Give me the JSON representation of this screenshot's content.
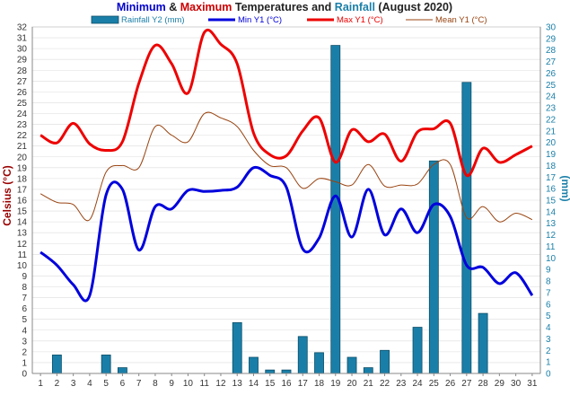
{
  "chart_data": {
    "type": "bar+line",
    "title_parts": [
      {
        "text": "Minimum",
        "color": "#0000cc"
      },
      {
        "text": " & ",
        "color": "#222222"
      },
      {
        "text": "Maximum",
        "color": "#cc0000"
      },
      {
        "text": " Temperatures and ",
        "color": "#222222"
      },
      {
        "text": "Rainfall",
        "color": "#1a7fa8"
      },
      {
        "text": " (August 2020)",
        "color": "#222222"
      }
    ],
    "ylabel_left": "Celsius (°C)",
    "ylabel_right": "(mm)",
    "ylabel_left_color": "#990000",
    "ylabel_right_color": "#1a7fa8",
    "ylim_left": [
      0,
      32
    ],
    "ylim_right": [
      0,
      30
    ],
    "yticks_left": [
      "0",
      "1",
      "2",
      "3",
      "4",
      "5",
      "6",
      "7",
      "8",
      "9",
      "10",
      "11",
      "12",
      "13",
      "14",
      "15",
      "16",
      "17",
      "18",
      "19",
      "20",
      "21",
      "22",
      "23",
      "24",
      "25",
      "26",
      "27",
      "28",
      "29",
      "30",
      "31",
      "32"
    ],
    "yticks_right": [
      "0",
      "1",
      "2",
      "3",
      "4",
      "5",
      "6",
      "7",
      "8",
      "9",
      "10",
      "11",
      "12",
      "13",
      "14",
      "15",
      "16",
      "17",
      "18",
      "19",
      "20",
      "21",
      "22",
      "23",
      "24",
      "25",
      "26",
      "27",
      "28",
      "29",
      "30"
    ],
    "x": [
      "1",
      "2",
      "3",
      "4",
      "5",
      "6",
      "7",
      "8",
      "9",
      "10",
      "11",
      "12",
      "13",
      "14",
      "15",
      "16",
      "17",
      "18",
      "19",
      "20",
      "21",
      "22",
      "23",
      "24",
      "25",
      "26",
      "27",
      "28",
      "29",
      "30",
      "31"
    ],
    "legend": [
      {
        "name": "Rainfall Y2 (mm)",
        "kind": "bar",
        "color": "#1a7fa8",
        "text_color": "#1a7fa8"
      },
      {
        "name": "Min Y1 (°C)",
        "kind": "line",
        "color": "#0000dd",
        "text_color": "#0000dd"
      },
      {
        "name": "Max Y1 (°C)",
        "kind": "line",
        "color": "#ee0000",
        "text_color": "#ee0000"
      },
      {
        "name": "Mean Y1 (°C)",
        "kind": "line",
        "color": "#994411",
        "text_color": "#994411"
      }
    ],
    "series": [
      {
        "key": "rain",
        "axis": "right",
        "values": [
          0,
          1.6,
          0,
          0,
          1.6,
          0.5,
          0,
          0,
          0,
          0,
          0,
          0,
          4.4,
          1.4,
          0.3,
          0.3,
          3.2,
          1.8,
          28.4,
          1.4,
          0.5,
          2.0,
          0,
          4.0,
          18.4,
          0,
          25.2,
          5.2,
          0,
          0,
          0
        ]
      },
      {
        "key": "min",
        "axis": "left",
        "values": [
          11.2,
          10,
          8.2,
          7.2,
          16.5,
          17,
          11.4,
          15.4,
          15.2,
          16.9,
          16.8,
          16.9,
          17.2,
          19,
          18.3,
          17.2,
          11.5,
          12.5,
          16.4,
          12.6,
          17,
          12.8,
          15.2,
          13,
          15.6,
          14.5,
          10,
          9.8,
          8.3,
          9.3,
          7.2
        ]
      },
      {
        "key": "max",
        "axis": "left",
        "values": [
          22,
          21.3,
          23.1,
          21.2,
          20.6,
          21.4,
          26.8,
          30.3,
          28.6,
          25.9,
          31.5,
          30.4,
          28.6,
          22.2,
          20.2,
          20.1,
          22.4,
          23.6,
          19.5,
          22.5,
          21.4,
          22.1,
          19.6,
          22.3,
          22.6,
          23.1,
          18.3,
          20.8,
          19.5,
          20.2,
          21
        ]
      },
      {
        "key": "mean",
        "axis": "left",
        "values": [
          16.6,
          15.8,
          15.6,
          14.2,
          18.6,
          19.2,
          19,
          22.8,
          22,
          21.4,
          24,
          23.6,
          22.8,
          20.6,
          19.2,
          19,
          17.1,
          18,
          17.7,
          17.4,
          19.3,
          17.3,
          17.4,
          17.5,
          19.3,
          19.3,
          14.4,
          15.4,
          14,
          14.8,
          14.2
        ]
      }
    ]
  }
}
